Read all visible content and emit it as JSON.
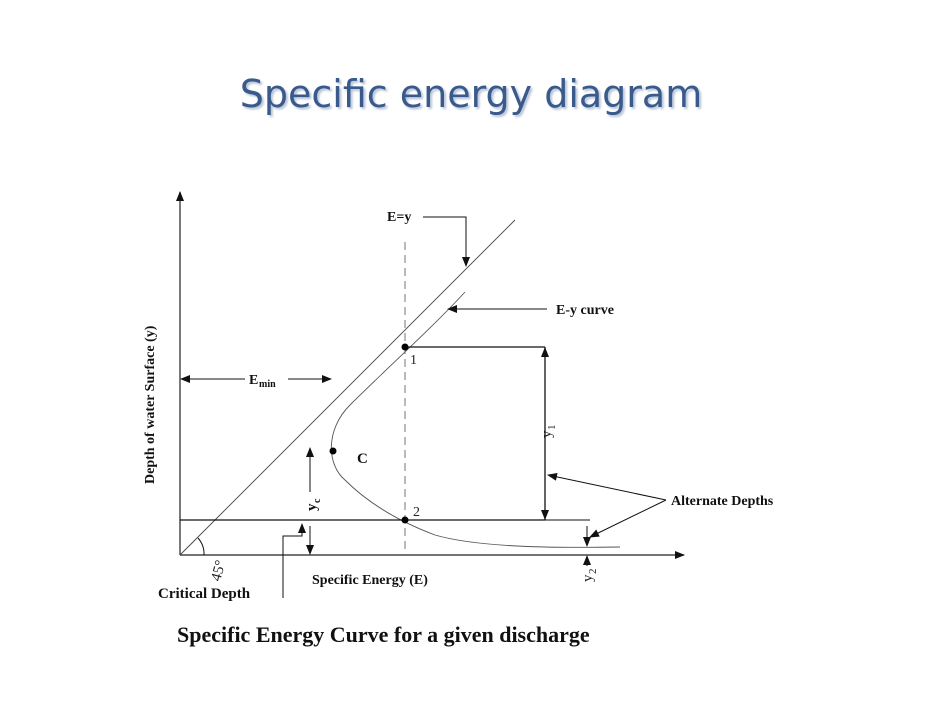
{
  "title": "Specific energy diagram",
  "labels": {
    "e_eq_y": "E=y",
    "ey_curve": "E-y curve",
    "emin_main": "E",
    "emin_sub": "min",
    "point_1": "1",
    "point_c": "C",
    "point_2": "2",
    "y1_main": "y",
    "y1_sub": "1",
    "yc_main": "y",
    "yc_sub": "c",
    "y2_main": "y",
    "y2_sub": "2",
    "angle": "45°",
    "alternate_depths": "Alternate Depths",
    "critical_depth": "Critical Depth",
    "x_axis": "Specific Energy (E)",
    "y_axis": "Depth of water Surface (y)"
  },
  "caption": "Specific Energy Curve for a given discharge"
}
